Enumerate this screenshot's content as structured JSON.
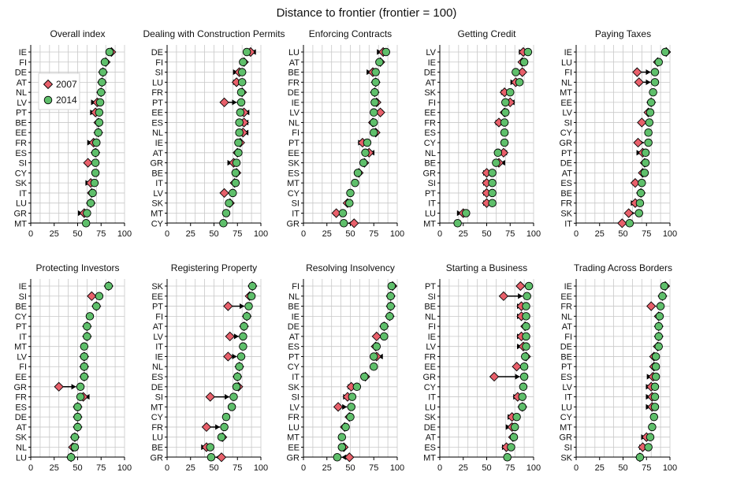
{
  "figure": {
    "title": "Distance to frontier (frontier = 100)",
    "colors": {
      "y2007": "#e8606b",
      "y2014": "#5fbf6b",
      "arrow": "#000000",
      "grid": "#c8c8c8",
      "axis": "#000000"
    }
  },
  "chart_data": [
    {
      "type": "dot",
      "title": "Overall index",
      "xlim": [
        0,
        100
      ],
      "xticks": [
        0,
        25,
        50,
        75,
        100
      ],
      "grid": true,
      "legend": {
        "placement": "top-left",
        "entries": [
          {
            "label": "2007",
            "marker": "diamond",
            "color": "#e8606b"
          },
          {
            "label": "2014",
            "marker": "circle",
            "color": "#5fbf6b"
          }
        ]
      },
      "categories": [
        "IE",
        "FI",
        "DE",
        "AT",
        "NL",
        "LV",
        "PT",
        "BE",
        "EE",
        "FR",
        "ES",
        "SI",
        "CY",
        "SK",
        "IT",
        "LU",
        "GR",
        "MT"
      ],
      "series": [
        {
          "name": "2007",
          "values": [
            86,
            80,
            77,
            76,
            75,
            71,
            69,
            72,
            72,
            67,
            69,
            61,
            null,
            64,
            65,
            64,
            57,
            null
          ]
        },
        {
          "name": "2014",
          "values": [
            84,
            79,
            77,
            76,
            75,
            74,
            73,
            73,
            72,
            70,
            69,
            69,
            69,
            68,
            66,
            64,
            60,
            59
          ]
        }
      ]
    },
    {
      "type": "dot",
      "title": "Dealing with Construction Permits",
      "xlim": [
        0,
        100
      ],
      "xticks": [
        0,
        25,
        50,
        75,
        100
      ],
      "grid": true,
      "categories": [
        "DE",
        "FI",
        "SI",
        "LU",
        "FR",
        "PT",
        "EE",
        "ES",
        "NL",
        "IE",
        "AT",
        "GR",
        "BE",
        "IT",
        "LV",
        "SK",
        "MT",
        "CY"
      ],
      "series": [
        {
          "name": "2007",
          "values": [
            89,
            82,
            77,
            74,
            80,
            61,
            82,
            82,
            81,
            78,
            75,
            71,
            74,
            72,
            61,
            67,
            null,
            null
          ]
        },
        {
          "name": "2014",
          "values": [
            85,
            81,
            80,
            80,
            79,
            79,
            78,
            77,
            77,
            76,
            76,
            74,
            73,
            73,
            70,
            66,
            63,
            60
          ]
        }
      ]
    },
    {
      "type": "dot",
      "title": "Enforcing Contracts",
      "xlim": [
        0,
        100
      ],
      "xticks": [
        0,
        25,
        50,
        75,
        100
      ],
      "grid": true,
      "categories": [
        "LU",
        "AT",
        "BE",
        "FR",
        "DE",
        "IE",
        "LV",
        "NL",
        "FI",
        "PT",
        "EE",
        "SK",
        "ES",
        "MT",
        "CY",
        "SI",
        "IT",
        "GR"
      ],
      "series": [
        {
          "name": "2007",
          "values": [
            85,
            82,
            74,
            77,
            76,
            78,
            82,
            74,
            77,
            63,
            70,
            65,
            59,
            null,
            null,
            47,
            35,
            54
          ]
        },
        {
          "name": "2014",
          "values": [
            88,
            81,
            77,
            77,
            76,
            76,
            75,
            75,
            75,
            68,
            66,
            64,
            58,
            55,
            50,
            49,
            42,
            43
          ]
        }
      ]
    },
    {
      "type": "dot",
      "title": "Getting Credit",
      "xlim": [
        0,
        100
      ],
      "xticks": [
        0,
        25,
        50,
        75,
        100
      ],
      "grid": true,
      "categories": [
        "LV",
        "IE",
        "DE",
        "AT",
        "SK",
        "FI",
        "EE",
        "FR",
        "ES",
        "CY",
        "NL",
        "BE",
        "GR",
        "SI",
        "PT",
        "IT",
        "LU",
        "MT"
      ],
      "series": [
        {
          "name": "2007",
          "values": [
            89,
            88,
            88,
            81,
            69,
            75,
            69,
            63,
            null,
            null,
            68,
            63,
            50,
            50,
            50,
            50,
            25,
            null
          ]
        },
        {
          "name": "2014",
          "values": [
            94,
            90,
            81,
            85,
            75,
            70,
            70,
            69,
            69,
            69,
            62,
            60,
            56,
            56,
            56,
            56,
            28,
            19
          ]
        }
      ]
    },
    {
      "type": "dot",
      "title": "Paying Taxes",
      "xlim": [
        0,
        100
      ],
      "xticks": [
        0,
        25,
        50,
        75,
        100
      ],
      "grid": true,
      "categories": [
        "IE",
        "LU",
        "FI",
        "NL",
        "MT",
        "EE",
        "LV",
        "SI",
        "CY",
        "GR",
        "PT",
        "DE",
        "AT",
        "ES",
        "BE",
        "FR",
        "SK",
        "IT"
      ],
      "series": [
        {
          "name": "2007",
          "values": [
            96,
            87,
            65,
            67,
            null,
            80,
            77,
            70,
            null,
            66,
            71,
            73,
            71,
            63,
            69,
            63,
            56,
            49
          ]
        },
        {
          "name": "2014",
          "values": [
            95,
            88,
            84,
            84,
            82,
            80,
            79,
            78,
            77,
            77,
            74,
            74,
            73,
            70,
            69,
            68,
            67,
            57
          ]
        }
      ]
    },
    {
      "type": "dot",
      "title": "Protecting Investors",
      "xlim": [
        0,
        100
      ],
      "xticks": [
        0,
        25,
        50,
        75,
        100
      ],
      "grid": true,
      "categories": [
        "IE",
        "SI",
        "BE",
        "CY",
        "PT",
        "IT",
        "MT",
        "LV",
        "FI",
        "EE",
        "GR",
        "FR",
        "ES",
        "DE",
        "AT",
        "SK",
        "NL",
        "LU"
      ],
      "series": [
        {
          "name": "2007",
          "values": [
            83,
            65,
            70,
            null,
            60,
            60,
            null,
            57,
            57,
            57,
            30,
            56,
            50,
            50,
            50,
            47,
            45,
            43
          ]
        },
        {
          "name": "2014",
          "values": [
            83,
            73,
            70,
            63,
            60,
            60,
            57,
            57,
            57,
            57,
            53,
            53,
            50,
            50,
            50,
            47,
            47,
            43
          ]
        }
      ]
    },
    {
      "type": "dot",
      "title": "Registering Property",
      "xlim": [
        0,
        100
      ],
      "xticks": [
        0,
        25,
        50,
        75,
        100
      ],
      "grid": true,
      "categories": [
        "SK",
        "EE",
        "PT",
        "FI",
        "AT",
        "LV",
        "IT",
        "IE",
        "NL",
        "ES",
        "DE",
        "SI",
        "MT",
        "CY",
        "FR",
        "LU",
        "BE",
        "GR"
      ],
      "series": [
        {
          "name": "2007",
          "values": [
            91,
            88,
            65,
            85,
            82,
            67,
            null,
            65,
            77,
            75,
            76,
            46,
            null,
            null,
            42,
            59,
            42,
            58
          ]
        },
        {
          "name": "2014",
          "values": [
            91,
            90,
            87,
            85,
            82,
            81,
            81,
            79,
            77,
            75,
            74,
            71,
            69,
            63,
            61,
            58,
            46,
            47
          ]
        }
      ]
    },
    {
      "type": "dot",
      "title": "Resolving Insolvency",
      "xlim": [
        0,
        100
      ],
      "xticks": [
        0,
        25,
        50,
        75,
        100
      ],
      "grid": true,
      "categories": [
        "FI",
        "NL",
        "BE",
        "IE",
        "DE",
        "AT",
        "ES",
        "PT",
        "CY",
        "IT",
        "SK",
        "SI",
        "LV",
        "FR",
        "LU",
        "MT",
        "EE",
        "GR"
      ],
      "series": [
        {
          "name": "2007",
          "values": [
            95,
            93,
            93,
            92,
            86,
            78,
            77,
            78,
            null,
            66,
            51,
            47,
            37,
            49,
            44,
            null,
            43,
            49
          ]
        },
        {
          "name": "2014",
          "values": [
            94,
            93,
            93,
            92,
            86,
            86,
            78,
            75,
            75,
            65,
            57,
            52,
            51,
            50,
            45,
            41,
            41,
            36
          ]
        }
      ]
    },
    {
      "type": "dot",
      "title": "Starting a Business",
      "xlim": [
        0,
        100
      ],
      "xticks": [
        0,
        25,
        50,
        75,
        100
      ],
      "grid": true,
      "categories": [
        "PT",
        "SI",
        "BE",
        "NL",
        "FI",
        "IE",
        "LV",
        "FR",
        "EE",
        "GR",
        "CY",
        "IT",
        "LU",
        "SK",
        "DE",
        "AT",
        "ES",
        "MT"
      ],
      "series": [
        {
          "name": "2007",
          "values": [
            86,
            68,
            87,
            87,
            91,
            87,
            89,
            92,
            82,
            58,
            null,
            83,
            88,
            77,
            77,
            78,
            71,
            null
          ]
        },
        {
          "name": "2014",
          "values": [
            95,
            93,
            92,
            92,
            92,
            92,
            92,
            91,
            90,
            90,
            89,
            88,
            88,
            82,
            80,
            79,
            76,
            72
          ]
        }
      ]
    },
    {
      "type": "dot",
      "title": "Trading Across Borders",
      "xlim": [
        0,
        100
      ],
      "xticks": [
        0,
        25,
        50,
        75,
        100
      ],
      "grid": true,
      "categories": [
        "IE",
        "EE",
        "FR",
        "NL",
        "AT",
        "FI",
        "DE",
        "BE",
        "PT",
        "ES",
        "LV",
        "IT",
        "LU",
        "CY",
        "MT",
        "GR",
        "SI",
        "SK"
      ],
      "series": [
        {
          "name": "2007",
          "values": [
            95,
            92,
            80,
            88,
            88,
            88,
            87,
            83,
            83,
            82,
            80,
            81,
            81,
            null,
            null,
            75,
            71,
            68
          ]
        },
        {
          "name": "2014",
          "values": [
            94,
            92,
            90,
            89,
            88,
            88,
            88,
            85,
            85,
            85,
            84,
            84,
            84,
            83,
            81,
            79,
            77,
            68
          ]
        }
      ]
    }
  ]
}
